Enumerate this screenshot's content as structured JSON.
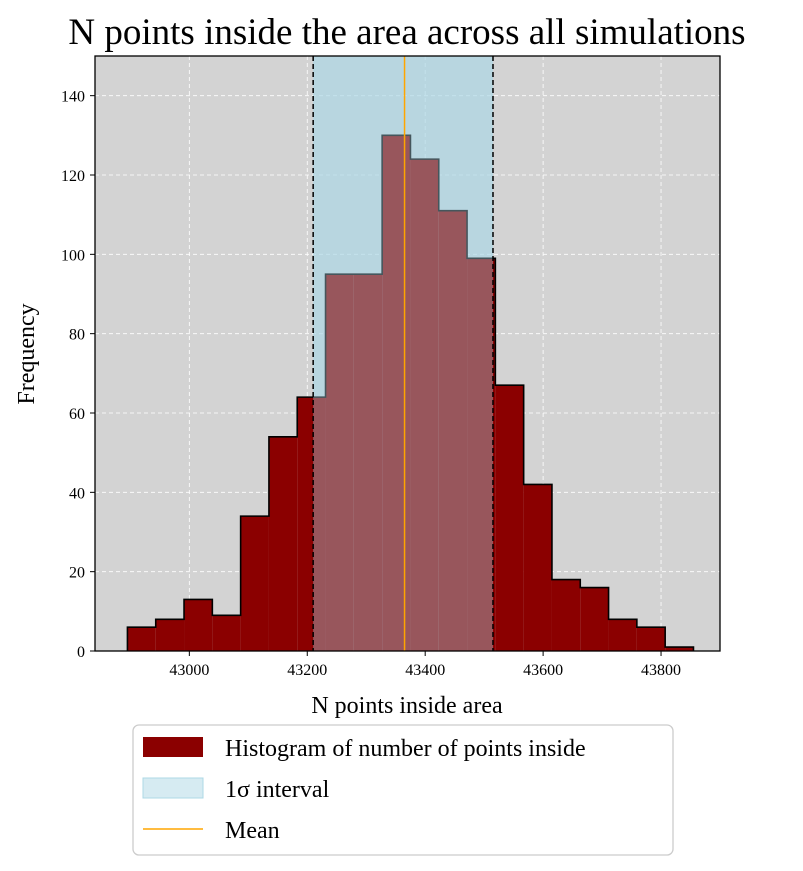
{
  "chart_data": {
    "type": "histogram",
    "title": "N points inside the area across all simulations",
    "xlabel": "N points inside area",
    "ylabel": "Frequency",
    "xlim": [
      42840,
      43900
    ],
    "ylim": [
      0,
      150
    ],
    "xticks": [
      43000,
      43200,
      43400,
      43600,
      43800
    ],
    "yticks": [
      0,
      20,
      40,
      60,
      80,
      100,
      120,
      140
    ],
    "grid": true,
    "bin_edges": [
      42895,
      42943,
      42991,
      43039,
      43087,
      43135,
      43183,
      43231,
      43279,
      43327,
      43375,
      43423,
      43471,
      43519,
      43567,
      43615,
      43663,
      43711,
      43759,
      43807,
      43855
    ],
    "counts": [
      6,
      8,
      13,
      9,
      34,
      54,
      64,
      95,
      95,
      130,
      124,
      111,
      99,
      67,
      42,
      18,
      16,
      8,
      6,
      1
    ],
    "mean": 43365,
    "sigma_interval": [
      43210,
      43515
    ],
    "legend": {
      "placement": "below",
      "entries": [
        {
          "label": "Histogram of number of points inside",
          "kind": "patch"
        },
        {
          "label": "1σ interval",
          "kind": "patch"
        },
        {
          "label": "Mean",
          "kind": "line"
        }
      ]
    },
    "colors": {
      "histogram": "#8b0000",
      "sigma_fill": "#add8e6",
      "mean_line": "#ffa500",
      "axes_background": "#d3d3d3",
      "grid": "#ffffff"
    }
  }
}
